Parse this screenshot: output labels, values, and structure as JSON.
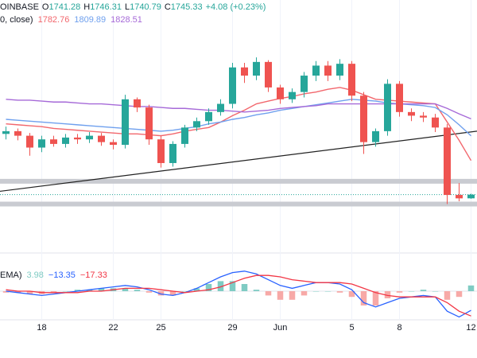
{
  "chart_data": {
    "type": "candlestick",
    "header": {
      "symbol": "OINBASE",
      "ohlc_labels": [
        "O",
        "H",
        "L",
        "C"
      ],
      "change": "+4.08 (+0.23%)",
      "ma_label": "0, close)",
      "macd_label": "EMA)",
      "macd_values": [
        "3.98",
        "−13.35",
        "−17.33"
      ]
    },
    "categories": [
      null,
      null,
      null,
      "18",
      null,
      null,
      null,
      null,
      null,
      "22",
      null,
      null,
      null,
      "25",
      null,
      null,
      null,
      null,
      null,
      "29",
      null,
      null,
      null,
      "Jun",
      null,
      null,
      null,
      null,
      null,
      "5",
      null,
      null,
      null,
      "8",
      null,
      null,
      null,
      null,
      null,
      "12"
    ],
    "open": [
      1812,
      1815,
      1810,
      1797,
      1806,
      1801,
      1808,
      1806,
      1810,
      1803,
      1800,
      1850,
      1841,
      1806,
      1780,
      1801,
      1819,
      1826,
      1836,
      1845,
      1885,
      1876,
      1891,
      1863,
      1850,
      1858,
      1876,
      1887,
      1876,
      1889,
      1854,
      1803,
      1815,
      1867,
      1836,
      1832,
      1830,
      1819,
      1745,
      1741.28
    ],
    "high": [
      1820,
      1818,
      1813,
      1810,
      1810,
      1812,
      1812,
      1814,
      1813,
      1806,
      1855,
      1852,
      1844,
      1810,
      1804,
      1822,
      1830,
      1840,
      1850,
      1890,
      1890,
      1896,
      1893,
      1866,
      1862,
      1880,
      1892,
      1892,
      1894,
      1892,
      1858,
      1818,
      1872,
      1870,
      1840,
      1836,
      1834,
      1823,
      1758,
      1746.31
    ],
    "low": [
      1806,
      1805,
      1788,
      1792,
      1798,
      1797,
      1801,
      1802,
      1799,
      1795,
      1796,
      1836,
      1800,
      1775,
      1776,
      1797,
      1815,
      1822,
      1832,
      1840,
      1868,
      1871,
      1858,
      1845,
      1846,
      1852,
      1870,
      1870,
      1871,
      1848,
      1790,
      1798,
      1810,
      1831,
      1826,
      1825,
      1814,
      1735,
      1738,
      1740.79
    ],
    "close": [
      1815,
      1810,
      1797,
      1806,
      1801,
      1808,
      1806,
      1810,
      1803,
      1800,
      1850,
      1841,
      1806,
      1780,
      1801,
      1819,
      1826,
      1836,
      1845,
      1885,
      1876,
      1891,
      1863,
      1850,
      1858,
      1876,
      1887,
      1876,
      1889,
      1854,
      1803,
      1815,
      1867,
      1836,
      1832,
      1830,
      1819,
      1745,
      1741.25,
      1745.33
    ],
    "up_color": "#26a69a",
    "down_color": "#ef5350",
    "ma": [
      {
        "color": "#f2676d",
        "values": [
          1823,
          1822,
          1821,
          1820,
          1818,
          1817,
          1816,
          1815,
          1814,
          1813,
          1812,
          1812,
          1811,
          1810,
          1812,
          1815,
          1817,
          1819,
          1825,
          1832,
          1838,
          1845,
          1848,
          1851,
          1853,
          1856,
          1858,
          1861,
          1863,
          1860,
          1855,
          1850,
          1849,
          1848,
          1847,
          1846,
          1845,
          1825,
          1805,
          1782.76
        ]
      },
      {
        "color": "#6fa0ee",
        "values": [
          1828,
          1827,
          1826,
          1825,
          1824,
          1823,
          1822,
          1821,
          1820,
          1819,
          1818,
          1817,
          1816,
          1815,
          1816,
          1818,
          1820,
          1823,
          1825,
          1828,
          1830,
          1833,
          1835,
          1838,
          1840,
          1842,
          1844,
          1846,
          1848,
          1850,
          1849,
          1848,
          1846,
          1845,
          1844,
          1843,
          1841,
          1833,
          1822,
          1809.89
        ]
      },
      {
        "color": "#a66ad8",
        "values": [
          1850,
          1849,
          1849,
          1848,
          1847,
          1847,
          1846,
          1845,
          1845,
          1844,
          1843,
          1842,
          1842,
          1841,
          1840,
          1840,
          1839,
          1838,
          1838,
          1837,
          1836,
          1837,
          1838,
          1840,
          1841,
          1842,
          1843,
          1845,
          1845,
          1845,
          1845,
          1845,
          1845,
          1845,
          1845,
          1845,
          1845,
          1840,
          1834,
          1828.51
        ]
      }
    ],
    "trendline": [
      1749,
      1815
    ],
    "levels": [
      1760,
      1735
    ],
    "ylim": [
      1697,
      1959
    ],
    "macd": {
      "color": "#2962ff",
      "values": [
        0,
        -1,
        -2,
        -3,
        -2,
        -1,
        0,
        1,
        2,
        3,
        4,
        3,
        1,
        -2,
        -3,
        -1,
        2,
        6,
        10,
        13,
        14,
        12,
        8,
        4,
        2,
        4,
        6,
        6,
        5,
        1,
        -8,
        -11,
        -8,
        -5,
        -4,
        -3,
        -4,
        -14,
        -18,
        -13.35
      ]
    },
    "signal": {
      "color": "#f23645",
      "values": [
        1,
        0,
        0,
        -1,
        -1,
        -1,
        -1,
        0,
        0,
        1,
        2,
        2,
        2,
        1,
        0,
        -1,
        0,
        1,
        3,
        6,
        9,
        11,
        11,
        10,
        8,
        7,
        6,
        6,
        6,
        5,
        2,
        -1,
        -3,
        -4,
        -4,
        -4,
        -4,
        -8,
        -14,
        -17.33
      ]
    },
    "hist": {
      "up_color": "#7fcbc3",
      "down_color": "#f7a9a7",
      "values": [
        -1,
        -1,
        -2,
        -2,
        -1,
        0,
        1,
        1,
        2,
        2,
        2,
        1,
        -1,
        -3,
        -3,
        0,
        2,
        5,
        7,
        7,
        5,
        1,
        -3,
        -6,
        -6,
        -3,
        0,
        0,
        -1,
        -4,
        -10,
        -10,
        -5,
        -1,
        0,
        1,
        0,
        -6,
        -4,
        3.98
      ]
    },
    "macd_ylim": [
      -20,
      20
    ]
  }
}
